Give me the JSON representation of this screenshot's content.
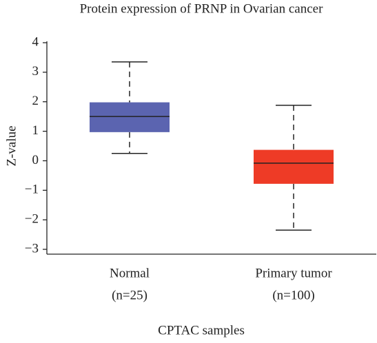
{
  "chart_data": {
    "type": "box",
    "title": "Protein expression of PRNP in Ovarian cancer",
    "x_label": "CPTAC samples",
    "y_label": "Z-value",
    "categories": [
      "Normal",
      "Primary tumor"
    ],
    "category_notes": [
      "(n=25)",
      "(n=100)"
    ],
    "boxes": [
      {
        "low": 0.25,
        "q1": 0.97,
        "median": 1.5,
        "q3": 1.98,
        "high": 3.35,
        "color": "#5b64b0"
      },
      {
        "low": -2.35,
        "q1": -0.78,
        "median": -0.08,
        "q3": 0.37,
        "high": 1.88,
        "color": "#ee3b26"
      }
    ],
    "ylim": [
      -3,
      4
    ],
    "yticks": [
      {
        "value": -3,
        "label": "−3"
      },
      {
        "value": -2,
        "label": "−2"
      },
      {
        "value": -1,
        "label": "−1"
      },
      0,
      1,
      2,
      3,
      4
    ]
  }
}
